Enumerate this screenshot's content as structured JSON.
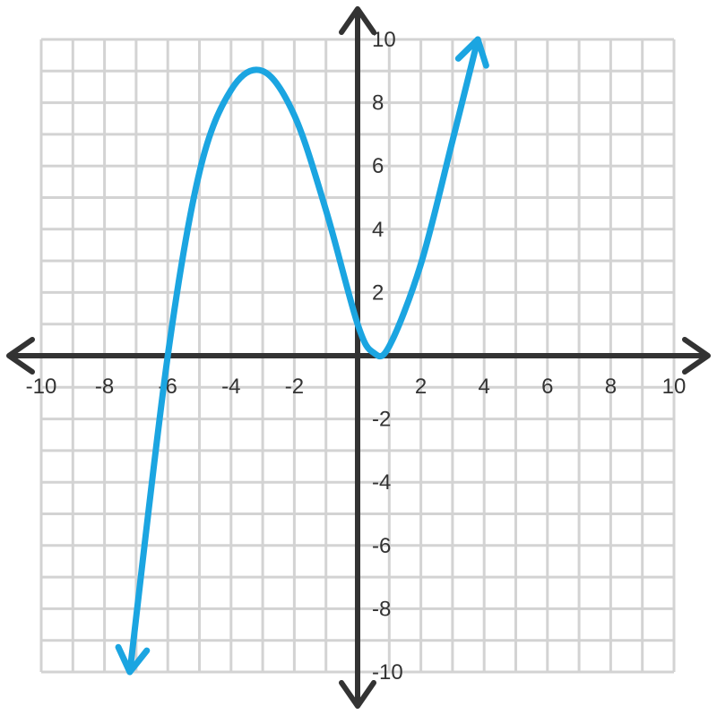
{
  "chart_data": {
    "type": "line",
    "title": "",
    "xlabel": "",
    "ylabel": "",
    "xlim": [
      -10,
      10
    ],
    "ylim": [
      -10,
      10
    ],
    "grid": true,
    "x_ticks": [
      "-10",
      "-8",
      "-6",
      "-4",
      "-2",
      "2",
      "4",
      "6",
      "8",
      "10"
    ],
    "y_ticks": [
      "10",
      "8",
      "6",
      "4",
      "2",
      "-2",
      "-4",
      "-6",
      "-8",
      "-10"
    ],
    "series": [
      {
        "x": [
          -7.2,
          -6,
          -5,
          -4,
          -3,
          -2,
          -1,
          0,
          0.5,
          1,
          2,
          3,
          3.8
        ],
        "y": [
          -10,
          0,
          5.8,
          8.4,
          9,
          7.6,
          4.6,
          1,
          0.1,
          0.3,
          2.9,
          6.8,
          10
        ],
        "color": "#1ba5e1"
      }
    ],
    "colors": {
      "curve": "#1ba5e1",
      "axis": "#333333",
      "grid": "#d3d3d3"
    }
  }
}
